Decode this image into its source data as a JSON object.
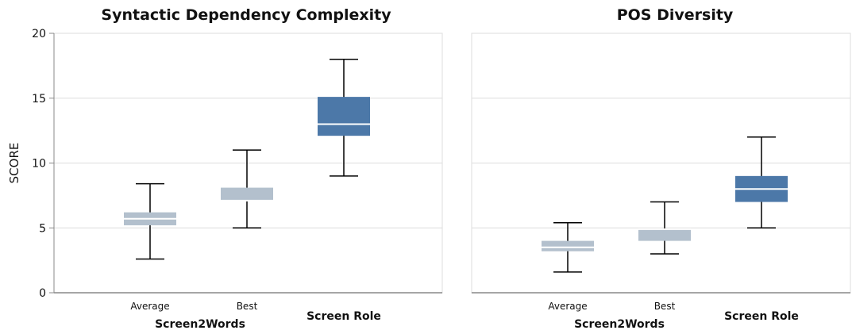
{
  "chart_data": [
    {
      "type": "box",
      "title": "Syntactic Dependency Complexity",
      "ylabel": "SCORE",
      "ylim": [
        0,
        20
      ],
      "yticks": [
        0,
        5,
        10,
        15,
        20
      ],
      "grid": true,
      "groups": [
        {
          "label": "Screen2Words",
          "categories": [
            "Average",
            "Best"
          ]
        },
        {
          "label": "Screen Role",
          "categories": [
            ""
          ]
        }
      ],
      "boxes": [
        {
          "category": "Average",
          "group": "Screen2Words",
          "min": 2.6,
          "q1": 5.2,
          "median": 5.7,
          "q3": 6.2,
          "max": 8.4,
          "color": "#b3c0cd"
        },
        {
          "category": "Best",
          "group": "Screen2Words",
          "min": 5.0,
          "q1": 7.1,
          "median": 7.1,
          "q3": 8.1,
          "max": 11.0,
          "color": "#b3c0cd"
        },
        {
          "category": "",
          "group": "Screen Role",
          "min": 9.0,
          "q1": 12.1,
          "median": 13.0,
          "q3": 15.1,
          "max": 18.0,
          "color": "#4c78a8"
        }
      ]
    },
    {
      "type": "box",
      "title": "POS Diversity",
      "ylabel": "",
      "ylim": [
        0,
        20
      ],
      "yticks": [
        0,
        5,
        10,
        15,
        20
      ],
      "grid": true,
      "groups": [
        {
          "label": "Screen2Words",
          "categories": [
            "Average",
            "Best"
          ]
        },
        {
          "label": "Screen Role",
          "categories": [
            ""
          ]
        }
      ],
      "boxes": [
        {
          "category": "Average",
          "group": "Screen2Words",
          "min": 1.6,
          "q1": 3.2,
          "median": 3.5,
          "q3": 4.0,
          "max": 5.4,
          "color": "#b3c0cd"
        },
        {
          "category": "Best",
          "group": "Screen2Words",
          "min": 3.0,
          "q1": 4.0,
          "median": 4.9,
          "q3": 4.9,
          "max": 7.0,
          "color": "#b3c0cd"
        },
        {
          "category": "",
          "group": "Screen Role",
          "min": 5.0,
          "q1": 7.0,
          "median": 8.0,
          "q3": 9.0,
          "max": 12.0,
          "color": "#4c78a8"
        }
      ]
    }
  ]
}
